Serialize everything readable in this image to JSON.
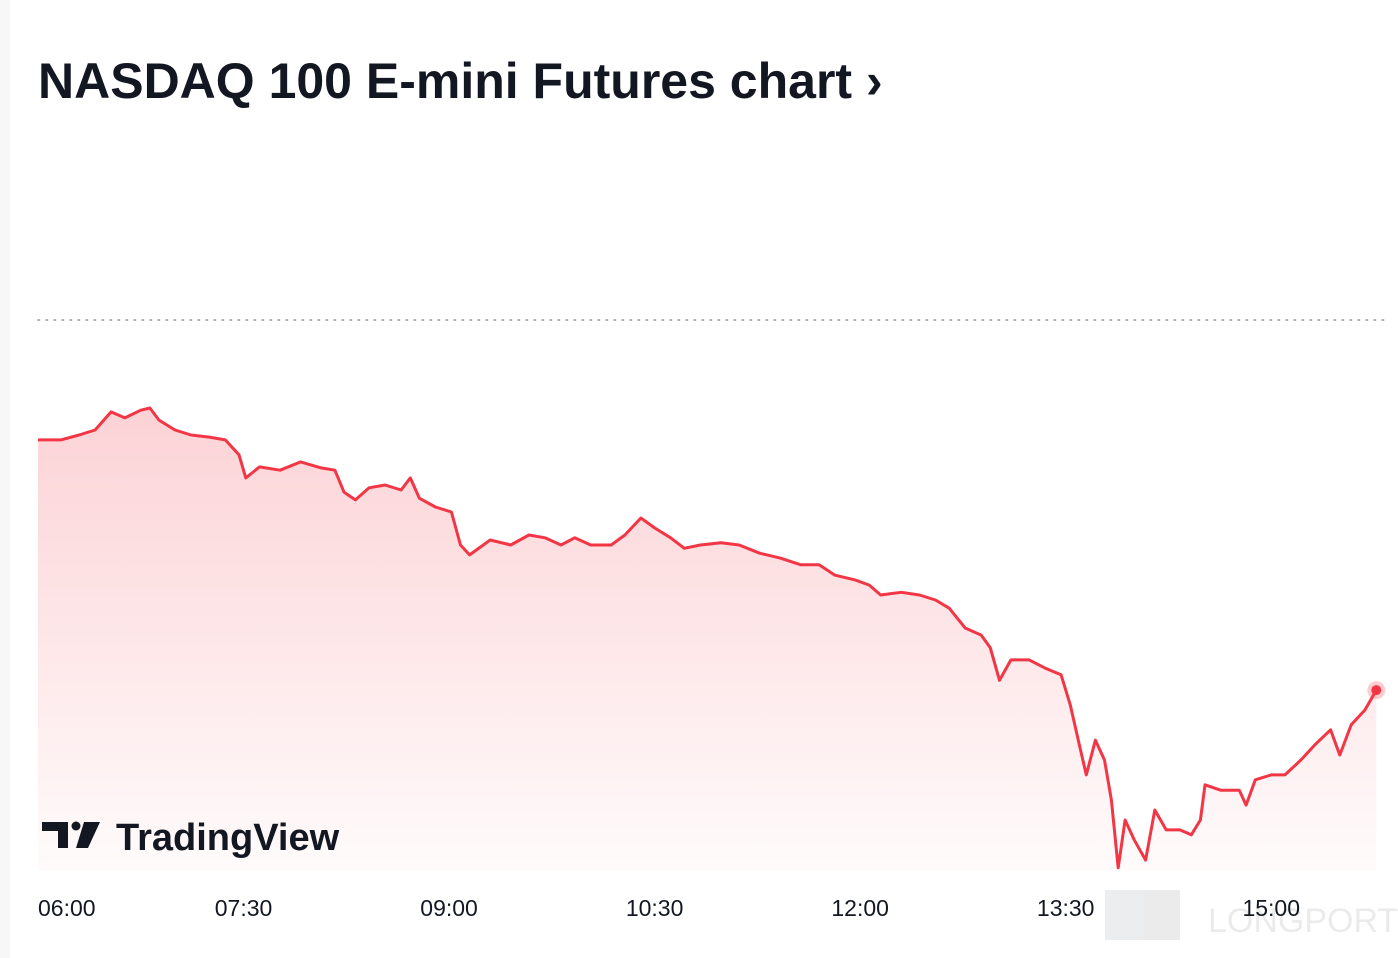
{
  "chart_data": {
    "type": "area",
    "title": "NASDAQ 100 E-mini Futures chart ›",
    "watermark": "TradingView",
    "footer_watermark": "LONGPORT",
    "color": "#f23645",
    "reference_value": 100,
    "xlim": [
      360,
      952
    ],
    "ylim": [
      0,
      100
    ],
    "xticks": [
      {
        "value": 360,
        "label": "06:00"
      },
      {
        "value": 450,
        "label": "07:30"
      },
      {
        "value": 540,
        "label": "09:00"
      },
      {
        "value": 630,
        "label": "10:30"
      },
      {
        "value": 720,
        "label": "12:00"
      },
      {
        "value": 810,
        "label": "13:30"
      },
      {
        "value": 900,
        "label": "15:00"
      }
    ],
    "x": [
      360,
      370,
      378,
      385,
      392,
      398,
      405,
      409,
      413,
      420,
      427,
      435,
      442,
      448,
      451,
      457,
      466,
      475,
      484,
      490,
      494,
      499,
      505,
      512,
      519,
      523,
      527,
      534,
      541,
      545,
      549,
      558,
      567,
      575,
      582,
      589,
      595,
      602,
      611,
      617,
      624,
      630,
      637,
      643,
      650,
      659,
      667,
      676,
      685,
      694,
      702,
      709,
      718,
      724,
      729,
      738,
      746,
      753,
      759,
      766,
      773,
      777,
      781,
      786,
      794,
      801,
      808,
      812,
      816,
      819,
      823,
      827,
      830,
      833,
      836,
      840,
      845,
      849,
      854,
      860,
      865,
      869,
      871,
      878,
      886,
      889,
      893,
      900,
      906,
      913,
      919,
      926,
      930,
      935,
      941,
      946
    ],
    "values": [
      78.2,
      78.2,
      79.1,
      80,
      83.3,
      82.2,
      83.6,
      84,
      81.8,
      80,
      79.1,
      78.7,
      78.2,
      75.5,
      71.3,
      73.3,
      72.7,
      74.2,
      73.1,
      72.7,
      68.7,
      67.3,
      69.5,
      70,
      69.1,
      71.3,
      67.6,
      66,
      65.1,
      59.1,
      57.3,
      60,
      59.1,
      60.9,
      60.4,
      59.1,
      60.4,
      59.1,
      59.1,
      60.9,
      64,
      62.2,
      60.4,
      58.5,
      59.1,
      59.5,
      59.1,
      57.6,
      56.7,
      55.5,
      55.5,
      53.6,
      52.7,
      51.8,
      50,
      50.5,
      50,
      49.1,
      47.6,
      44,
      42.7,
      40.4,
      34.5,
      38.2,
      38.2,
      36.7,
      35.5,
      30,
      22.7,
      17.3,
      23.6,
      20,
      12.7,
      0.4,
      9.1,
      5.5,
      1.8,
      10.9,
      7.3,
      7.3,
      6.4,
      9.1,
      15.5,
      14.5,
      14.5,
      11.8,
      16.4,
      17.3,
      17.3,
      20,
      22.7,
      25.5,
      20.9,
      26.4,
      29.1,
      32.7
    ]
  }
}
